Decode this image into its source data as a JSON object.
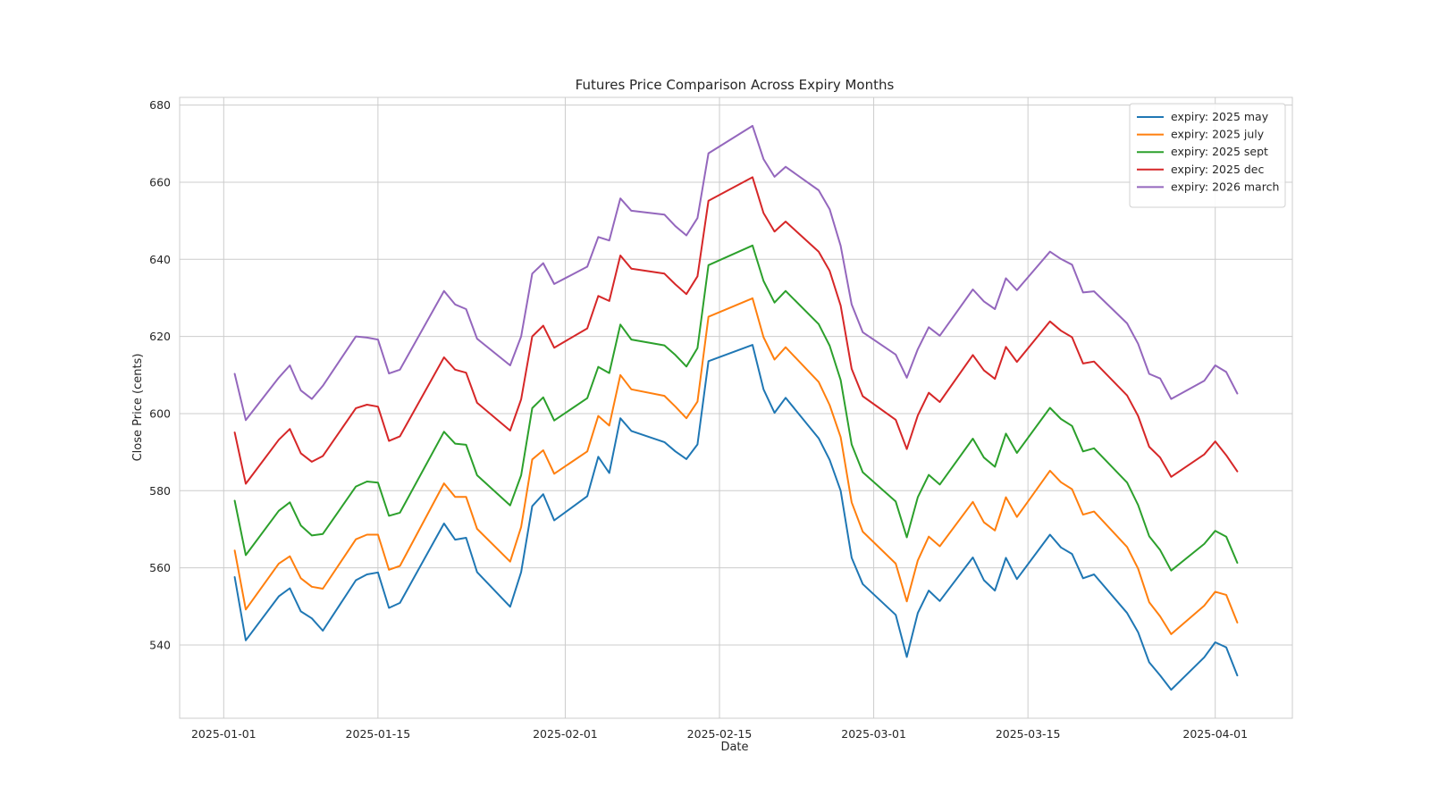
{
  "chart_data": {
    "type": "line",
    "title": "Futures Price Comparison Across Expiry Months",
    "xlabel": "Date",
    "ylabel": "Close Price (cents)",
    "grid": true,
    "legend_position": "top-right",
    "x_ticks": [
      "2025-01-01",
      "2025-01-15",
      "2025-02-01",
      "2025-02-15",
      "2025-03-01",
      "2025-03-15",
      "2025-04-01"
    ],
    "y_ticks": [
      540,
      560,
      580,
      600,
      620,
      640,
      660,
      680
    ],
    "xlim": [
      "2024-12-28",
      "2025-04-08"
    ],
    "ylim": [
      521,
      682
    ],
    "x": [
      "2025-01-02",
      "2025-01-03",
      "2025-01-06",
      "2025-01-07",
      "2025-01-08",
      "2025-01-09",
      "2025-01-10",
      "2025-01-13",
      "2025-01-14",
      "2025-01-15",
      "2025-01-16",
      "2025-01-17",
      "2025-01-21",
      "2025-01-22",
      "2025-01-23",
      "2025-01-24",
      "2025-01-27",
      "2025-01-28",
      "2025-01-29",
      "2025-01-30",
      "2025-01-31",
      "2025-02-03",
      "2025-02-04",
      "2025-02-05",
      "2025-02-06",
      "2025-02-07",
      "2025-02-10",
      "2025-02-11",
      "2025-02-12",
      "2025-02-13",
      "2025-02-14",
      "2025-02-18",
      "2025-02-19",
      "2025-02-20",
      "2025-02-21",
      "2025-02-24",
      "2025-02-25",
      "2025-02-26",
      "2025-02-27",
      "2025-02-28",
      "2025-03-03",
      "2025-03-04",
      "2025-03-05",
      "2025-03-06",
      "2025-03-07",
      "2025-03-10",
      "2025-03-11",
      "2025-03-12",
      "2025-03-13",
      "2025-03-14",
      "2025-03-17",
      "2025-03-18",
      "2025-03-19",
      "2025-03-20",
      "2025-03-21",
      "2025-03-24",
      "2025-03-25",
      "2025-03-26",
      "2025-03-27",
      "2025-03-28",
      "2025-03-31",
      "2025-04-01",
      "2025-04-02",
      "2025-04-03"
    ],
    "series": [
      {
        "name": "expiry: 2025 may",
        "color": "#1f77b4",
        "values": [
          557.6,
          541.2,
          552.6,
          554.7,
          548.7,
          546.9,
          543.7,
          556.8,
          558.3,
          558.8,
          549.6,
          550.9,
          571.5,
          567.3,
          567.8,
          558.9,
          549.9,
          558.9,
          576.0,
          579.1,
          572.3,
          578.6,
          588.8,
          584.6,
          598.8,
          595.5,
          592.6,
          590.2,
          588.2,
          592.0,
          613.6,
          617.8,
          606.3,
          600.2,
          604.1,
          593.6,
          588.0,
          580.0,
          562.6,
          555.8,
          547.8,
          536.9,
          548.3,
          554.1,
          551.4,
          562.7,
          556.8,
          554.1,
          562.6,
          557.1,
          568.6,
          565.3,
          563.6,
          557.3,
          558.3,
          548.3,
          543.3,
          535.5,
          532.1,
          528.4,
          536.8,
          540.7,
          539.4,
          532.1
        ]
      },
      {
        "name": "expiry: 2025 july",
        "color": "#ff7f0e",
        "values": [
          564.5,
          549.2,
          561.1,
          563.0,
          557.3,
          555.1,
          554.6,
          567.4,
          568.6,
          568.6,
          559.5,
          560.5,
          581.9,
          578.4,
          578.4,
          570.1,
          561.6,
          570.6,
          588.1,
          590.5,
          584.4,
          590.2,
          599.4,
          596.9,
          610.0,
          606.3,
          604.6,
          601.8,
          598.8,
          603.1,
          625.1,
          629.9,
          619.8,
          614.0,
          617.2,
          608.2,
          602.2,
          593.9,
          577.0,
          569.4,
          561.1,
          551.3,
          561.9,
          568.1,
          565.6,
          577.1,
          571.8,
          569.7,
          578.3,
          573.2,
          585.2,
          582.2,
          580.4,
          573.8,
          574.6,
          565.4,
          559.8,
          551.1,
          547.4,
          542.8,
          550.2,
          553.8,
          553.0,
          545.8
        ]
      },
      {
        "name": "expiry: 2025 sept",
        "color": "#2ca02c",
        "values": [
          577.4,
          563.3,
          574.8,
          577.0,
          571.0,
          568.4,
          568.8,
          581.1,
          582.4,
          582.1,
          573.5,
          574.3,
          595.3,
          592.2,
          591.9,
          584.0,
          576.2,
          584.0,
          601.4,
          604.2,
          598.2,
          604.0,
          612.1,
          610.5,
          623.1,
          619.2,
          617.7,
          615.2,
          612.2,
          617.0,
          638.5,
          643.6,
          634.4,
          628.8,
          631.8,
          623.2,
          617.6,
          608.7,
          592.0,
          584.8,
          577.2,
          567.9,
          578.3,
          584.1,
          581.6,
          593.5,
          588.6,
          586.2,
          594.8,
          589.8,
          601.5,
          598.6,
          596.8,
          590.2,
          591.0,
          582.1,
          576.3,
          568.2,
          564.6,
          559.3,
          566.2,
          569.6,
          568.1,
          561.3
        ]
      },
      {
        "name": "expiry: 2025 dec",
        "color": "#d62728",
        "values": [
          595.1,
          581.8,
          593.2,
          596.0,
          589.7,
          587.5,
          589.0,
          601.4,
          602.3,
          601.8,
          592.9,
          594.1,
          614.6,
          611.4,
          610.6,
          602.8,
          595.6,
          603.7,
          620.0,
          622.8,
          617.1,
          622.1,
          630.5,
          629.2,
          641.0,
          637.6,
          636.3,
          633.5,
          631.0,
          635.6,
          655.2,
          661.3,
          652.0,
          647.2,
          649.8,
          642.0,
          637.0,
          628.0,
          611.6,
          604.5,
          598.4,
          590.8,
          599.5,
          605.4,
          603.0,
          615.2,
          611.2,
          609.0,
          617.3,
          613.4,
          623.9,
          621.5,
          619.8,
          613.0,
          613.5,
          604.7,
          599.4,
          591.4,
          588.6,
          583.6,
          589.4,
          592.8,
          589.2,
          585.0
        ]
      },
      {
        "name": "expiry: 2026 march",
        "color": "#9467bd",
        "values": [
          610.3,
          598.3,
          609.3,
          612.5,
          606.0,
          603.8,
          607.2,
          620.0,
          619.7,
          619.2,
          610.4,
          611.4,
          631.8,
          628.3,
          627.1,
          619.4,
          612.5,
          620.0,
          636.3,
          639.0,
          633.6,
          638.1,
          645.8,
          644.9,
          655.8,
          652.6,
          651.6,
          648.6,
          646.2,
          650.7,
          667.5,
          674.6,
          666.0,
          661.4,
          664.0,
          657.9,
          653.0,
          643.5,
          628.3,
          621.1,
          615.3,
          609.3,
          616.7,
          622.4,
          620.2,
          632.2,
          629.1,
          627.1,
          635.1,
          632.0,
          642.0,
          640.1,
          638.6,
          631.4,
          631.7,
          623.4,
          618.1,
          610.3,
          609.1,
          603.8,
          608.5,
          612.5,
          610.8,
          605.2
        ]
      }
    ]
  }
}
